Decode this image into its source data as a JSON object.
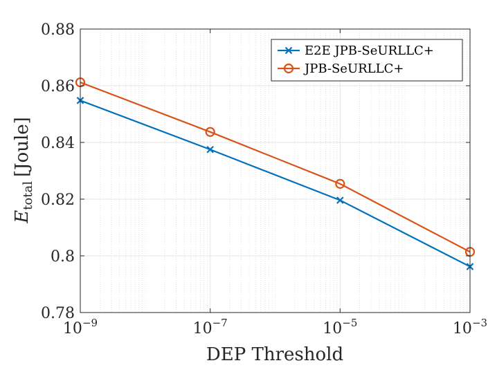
{
  "chart_data": {
    "type": "line",
    "title": "",
    "xlabel": "DEP Threshold",
    "ylabel": {
      "symbol": "E",
      "subscript": "total",
      "unit": "[Joule]"
    },
    "xscale": "log",
    "x": [
      1e-09,
      1e-07,
      1e-05,
      0.001
    ],
    "xticks": [
      {
        "base": "10",
        "exp": "−9"
      },
      {
        "base": "10",
        "exp": "−7"
      },
      {
        "base": "10",
        "exp": "−5"
      },
      {
        "base": "10",
        "exp": "−3"
      }
    ],
    "ylim": [
      0.78,
      0.88
    ],
    "yticks": [
      "0.78",
      "0.8",
      "0.82",
      "0.84",
      "0.86",
      "0.88"
    ],
    "grid": true,
    "legend_position": "top-right",
    "series": [
      {
        "name": "E2E JPB-SeURLLC+",
        "values": [
          0.8548,
          0.8375,
          0.8196,
          0.7962
        ],
        "color": "#0072BD",
        "marker": "x"
      },
      {
        "name": "JPB-SeURLLC+",
        "values": [
          0.8612,
          0.8437,
          0.8254,
          0.8014
        ],
        "color": "#D95319",
        "marker": "o"
      }
    ]
  }
}
